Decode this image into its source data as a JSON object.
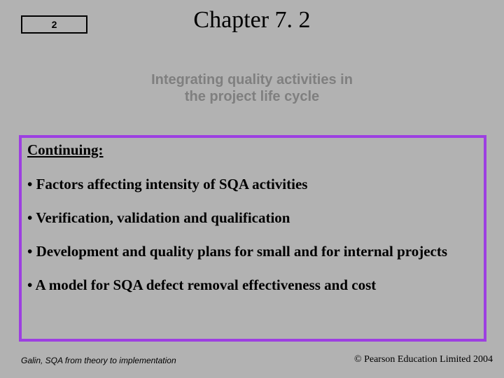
{
  "page_number": "2",
  "chapter_title": "Chapter 7. 2",
  "subtitle_line1": "Integrating quality activities in",
  "subtitle_line2": "the project life cycle",
  "section_label": "Continuing:",
  "bullets": {
    "b1": "• Factors affecting intensity of SQA activities",
    "b2": "• Verification, validation and qualification",
    "b3": "• Development and quality plans for small and for internal projects",
    "b4": "• A model for SQA defect removal effectiveness and cost"
  },
  "footer_left": "Galin, SQA from theory to implementation",
  "footer_right": "© Pearson Education Limited 2004",
  "colors": {
    "background": "#b2b2b2",
    "border": "#9d3fe1",
    "subtitle_text": "#7f7f7f",
    "text": "#000000"
  }
}
